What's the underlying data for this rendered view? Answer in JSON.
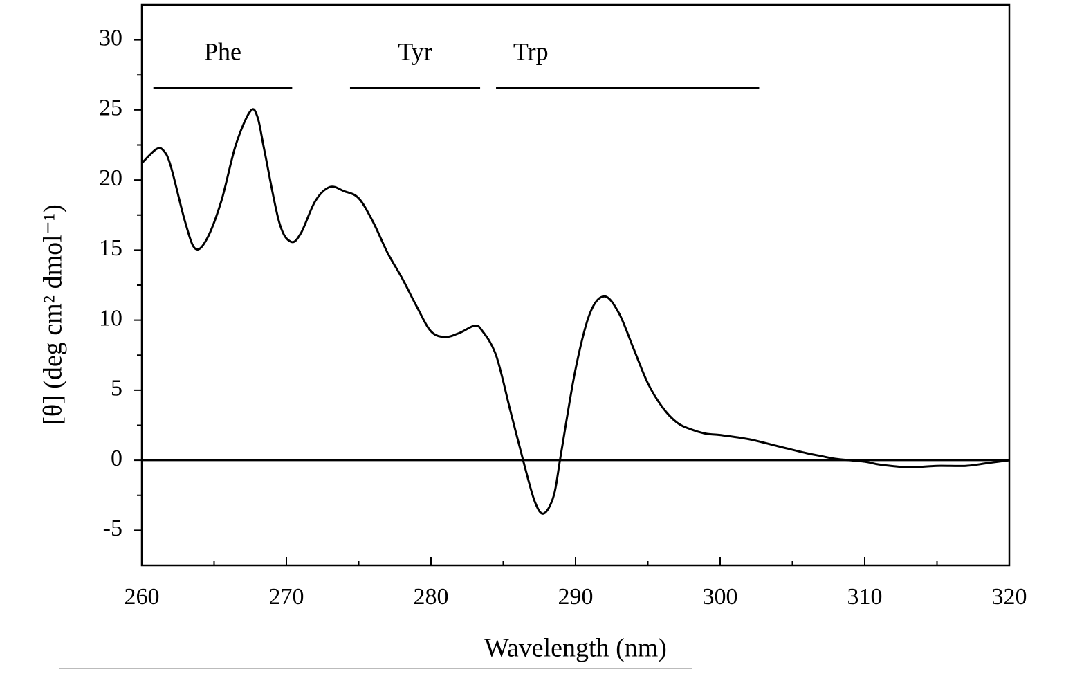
{
  "chart_data": {
    "type": "line",
    "xlabel": "Wavelength (nm)",
    "ylabel": "[θ] (deg cm² dmol⁻¹)",
    "xlim": [
      260,
      320
    ],
    "xticks": [
      260,
      270,
      280,
      290,
      300,
      310,
      320
    ],
    "ylim": [
      -7.5,
      32.5
    ],
    "yticks": [
      -5,
      0,
      5,
      10,
      15,
      20,
      25,
      30
    ],
    "hline": 0,
    "annotations": [
      {
        "text": "Phe",
        "range": [
          260.8,
          270.4
        ]
      },
      {
        "text": "Tyr",
        "range": [
          274.4,
          283.4
        ]
      },
      {
        "text": "Trp",
        "range": [
          284.5,
          302.7
        ]
      }
    ],
    "series": [
      {
        "color": "#000000",
        "x": [
          260,
          261,
          261.5,
          262,
          263,
          263.7,
          264.5,
          265.5,
          266.5,
          267.5,
          268,
          268.5,
          269.5,
          270.3,
          271,
          272,
          273,
          274,
          275,
          276,
          277,
          278,
          279,
          280,
          281,
          282,
          283,
          283.5,
          284.5,
          285.5,
          286.5,
          287.2,
          287.8,
          288.5,
          289,
          290,
          291,
          292,
          293,
          294,
          295,
          296,
          297,
          298,
          299,
          300,
          302,
          304,
          306,
          307,
          308,
          310,
          311,
          313,
          315,
          317,
          318.5,
          320
        ],
        "values": [
          21.2,
          22.2,
          22.1,
          21,
          17,
          15.1,
          15.8,
          18.5,
          22.5,
          24.9,
          24.5,
          22,
          17,
          15.6,
          16.2,
          18.5,
          19.5,
          19.2,
          18.7,
          17,
          14.8,
          13,
          11,
          9.2,
          8.8,
          9.1,
          9.6,
          9.3,
          7.5,
          3.5,
          -0.5,
          -3,
          -3.8,
          -2.5,
          0.5,
          6.5,
          10.5,
          11.7,
          10.5,
          8,
          5.5,
          3.8,
          2.7,
          2.2,
          1.9,
          1.8,
          1.5,
          1,
          0.5,
          0.3,
          0.1,
          -0.1,
          -0.3,
          -0.5,
          -0.4,
          -0.4,
          -0.2,
          0
        ]
      }
    ]
  }
}
